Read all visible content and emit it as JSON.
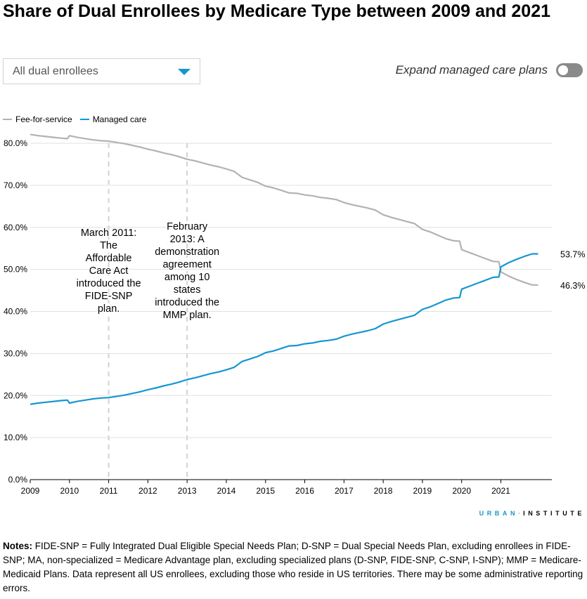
{
  "title": "Share of Dual Enrollees by Medicare Type between 2009 and 2021",
  "controls": {
    "dropdown_value": "All dual enrollees",
    "toggle_label": "Expand managed care plans",
    "toggle_on": false
  },
  "colors": {
    "ffs": "#b2b2b2",
    "mc": "#1696d2",
    "accent": "#1696d2",
    "grid": "#e0e0e0",
    "annotation_line": "#d2d2d2"
  },
  "logo": {
    "part1": "URBAN",
    "separator": "·",
    "part2": "INSTITUTE"
  },
  "notes": {
    "label": "Notes:",
    "text": " FIDE-SNP = Fully Integrated Dual Eligible Special Needs Plan; D-SNP = Dual Special Needs Plan, excluding enrollees in FIDE-SNP; MA, non-specialized = Medicare Advantage plan, excluding specialized plans (D-SNP, FIDE-SNP, C-SNP, I-SNP); MMP = Medicare-Medicaid Plans. Data represent all US enrollees, excluding those who reside in US territories. There may be some administrative reporting errors."
  },
  "chart_data": {
    "type": "line",
    "title": "Share of Dual Enrollees by Medicare Type between 2009 and 2021",
    "xlabel": "",
    "ylabel": "",
    "xlim": [
      2009,
      2022.3
    ],
    "ylim": [
      0,
      80
    ],
    "x_ticks": [
      "2009",
      "2010",
      "2011",
      "2012",
      "2013",
      "2014",
      "2015",
      "2016",
      "2017",
      "2018",
      "2019",
      "2020",
      "2021"
    ],
    "y_ticks": [
      "0.0%",
      "10.0%",
      "20.0%",
      "30.0%",
      "40.0%",
      "50.0%",
      "60.0%",
      "70.0%",
      "80.0%"
    ],
    "grid": true,
    "legend_position": "top-left",
    "series": [
      {
        "name": "Fee-for-service",
        "color": "#b2b2b2",
        "points": [
          [
            2009.0,
            82.1
          ],
          [
            2009.2,
            81.8
          ],
          [
            2009.4,
            81.6
          ],
          [
            2009.6,
            81.4
          ],
          [
            2009.8,
            81.2
          ],
          [
            2009.95,
            81.1
          ],
          [
            2010.0,
            81.8
          ],
          [
            2010.2,
            81.4
          ],
          [
            2010.4,
            81.1
          ],
          [
            2010.6,
            80.8
          ],
          [
            2010.8,
            80.6
          ],
          [
            2011.0,
            80.5
          ],
          [
            2011.2,
            80.2
          ],
          [
            2011.4,
            79.9
          ],
          [
            2011.6,
            79.5
          ],
          [
            2011.8,
            79.1
          ],
          [
            2012.0,
            78.6
          ],
          [
            2012.2,
            78.2
          ],
          [
            2012.4,
            77.7
          ],
          [
            2012.6,
            77.3
          ],
          [
            2012.8,
            76.8
          ],
          [
            2013.0,
            76.2
          ],
          [
            2013.2,
            75.8
          ],
          [
            2013.4,
            75.3
          ],
          [
            2013.6,
            74.8
          ],
          [
            2013.8,
            74.4
          ],
          [
            2014.0,
            73.9
          ],
          [
            2014.2,
            73.3
          ],
          [
            2014.4,
            71.9
          ],
          [
            2014.6,
            71.3
          ],
          [
            2014.8,
            70.7
          ],
          [
            2015.0,
            69.8
          ],
          [
            2015.2,
            69.4
          ],
          [
            2015.4,
            68.8
          ],
          [
            2015.6,
            68.2
          ],
          [
            2015.8,
            68.1
          ],
          [
            2016.0,
            67.7
          ],
          [
            2016.2,
            67.5
          ],
          [
            2016.4,
            67.1
          ],
          [
            2016.6,
            66.9
          ],
          [
            2016.8,
            66.6
          ],
          [
            2017.0,
            65.9
          ],
          [
            2017.2,
            65.4
          ],
          [
            2017.4,
            65.0
          ],
          [
            2017.6,
            64.6
          ],
          [
            2017.8,
            64.1
          ],
          [
            2018.0,
            63.0
          ],
          [
            2018.2,
            62.4
          ],
          [
            2018.4,
            61.9
          ],
          [
            2018.6,
            61.4
          ],
          [
            2018.8,
            60.9
          ],
          [
            2019.0,
            59.5
          ],
          [
            2019.2,
            58.9
          ],
          [
            2019.4,
            58.1
          ],
          [
            2019.6,
            57.3
          ],
          [
            2019.8,
            56.8
          ],
          [
            2019.95,
            56.7
          ],
          [
            2020.0,
            54.7
          ],
          [
            2020.2,
            54.0
          ],
          [
            2020.4,
            53.3
          ],
          [
            2020.6,
            52.6
          ],
          [
            2020.8,
            51.9
          ],
          [
            2020.95,
            51.8
          ],
          [
            2021.0,
            49.4
          ],
          [
            2021.2,
            48.4
          ],
          [
            2021.4,
            47.6
          ],
          [
            2021.6,
            46.9
          ],
          [
            2021.8,
            46.3
          ],
          [
            2021.95,
            46.3
          ]
        ]
      },
      {
        "name": "Managed care",
        "color": "#1696d2",
        "points": [
          [
            2009.0,
            17.9
          ],
          [
            2009.2,
            18.2
          ],
          [
            2009.4,
            18.4
          ],
          [
            2009.6,
            18.6
          ],
          [
            2009.8,
            18.8
          ],
          [
            2009.95,
            18.9
          ],
          [
            2010.0,
            18.2
          ],
          [
            2010.2,
            18.6
          ],
          [
            2010.4,
            18.9
          ],
          [
            2010.6,
            19.2
          ],
          [
            2010.8,
            19.4
          ],
          [
            2011.0,
            19.5
          ],
          [
            2011.2,
            19.8
          ],
          [
            2011.4,
            20.1
          ],
          [
            2011.6,
            20.5
          ],
          [
            2011.8,
            20.9
          ],
          [
            2012.0,
            21.4
          ],
          [
            2012.2,
            21.8
          ],
          [
            2012.4,
            22.3
          ],
          [
            2012.6,
            22.7
          ],
          [
            2012.8,
            23.2
          ],
          [
            2013.0,
            23.8
          ],
          [
            2013.2,
            24.2
          ],
          [
            2013.4,
            24.7
          ],
          [
            2013.6,
            25.2
          ],
          [
            2013.8,
            25.6
          ],
          [
            2014.0,
            26.1
          ],
          [
            2014.2,
            26.7
          ],
          [
            2014.4,
            28.1
          ],
          [
            2014.6,
            28.7
          ],
          [
            2014.8,
            29.3
          ],
          [
            2015.0,
            30.2
          ],
          [
            2015.2,
            30.6
          ],
          [
            2015.4,
            31.2
          ],
          [
            2015.6,
            31.8
          ],
          [
            2015.8,
            31.9
          ],
          [
            2016.0,
            32.3
          ],
          [
            2016.2,
            32.5
          ],
          [
            2016.4,
            32.9
          ],
          [
            2016.6,
            33.1
          ],
          [
            2016.8,
            33.4
          ],
          [
            2017.0,
            34.1
          ],
          [
            2017.2,
            34.6
          ],
          [
            2017.4,
            35.0
          ],
          [
            2017.6,
            35.4
          ],
          [
            2017.8,
            35.9
          ],
          [
            2018.0,
            37.0
          ],
          [
            2018.2,
            37.6
          ],
          [
            2018.4,
            38.1
          ],
          [
            2018.6,
            38.6
          ],
          [
            2018.8,
            39.1
          ],
          [
            2019.0,
            40.5
          ],
          [
            2019.2,
            41.1
          ],
          [
            2019.4,
            41.9
          ],
          [
            2019.6,
            42.7
          ],
          [
            2019.8,
            43.2
          ],
          [
            2019.95,
            43.3
          ],
          [
            2020.0,
            45.3
          ],
          [
            2020.2,
            46.0
          ],
          [
            2020.4,
            46.7
          ],
          [
            2020.6,
            47.4
          ],
          [
            2020.8,
            48.1
          ],
          [
            2020.95,
            48.2
          ],
          [
            2021.0,
            50.6
          ],
          [
            2021.2,
            51.6
          ],
          [
            2021.4,
            52.4
          ],
          [
            2021.6,
            53.1
          ],
          [
            2021.8,
            53.7
          ],
          [
            2021.95,
            53.7
          ]
        ]
      }
    ],
    "end_labels": [
      "46.3%",
      "53.7%"
    ],
    "annotations": [
      {
        "x": 2011,
        "label": "March 2011: The Affordable Care Act introduced the FIDE-SNP plan.",
        "lines": [
          "March 2011:",
          "The",
          "Affordable",
          "Care Act",
          "introduced the",
          "FIDE-SNP",
          "plan."
        ]
      },
      {
        "x": 2013,
        "label": "February 2013: A demonstration agreement among 10 states introduced the MMP plan.",
        "lines": [
          "February",
          "2013: A",
          "demonstration",
          "agreement",
          "among 10",
          "states",
          "introduced the",
          "MMP plan."
        ]
      }
    ]
  }
}
